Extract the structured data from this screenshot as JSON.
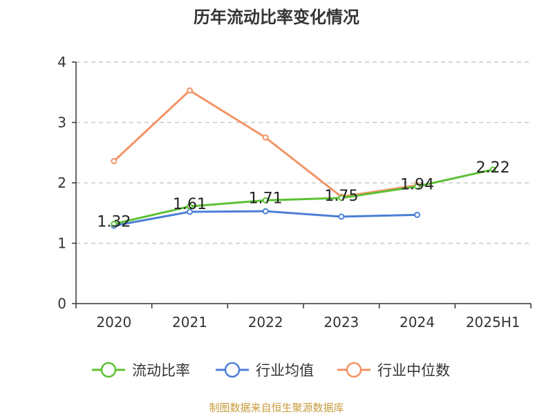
{
  "chart_data": {
    "type": "line",
    "title": "历年流动比率变化情况",
    "categories": [
      "2020",
      "2021",
      "2022",
      "2023",
      "2024",
      "2025H1"
    ],
    "ylim": [
      0,
      4
    ],
    "yticks": [
      "0",
      "1",
      "2",
      "3",
      "4"
    ],
    "grid": true,
    "legend_position": "bottom",
    "series": [
      {
        "name": "流动比率",
        "color": "#5cc133",
        "values": [
          1.32,
          1.61,
          1.71,
          1.75,
          1.94,
          2.22
        ],
        "labels": [
          "1.32",
          "1.61",
          "1.71",
          "1.75",
          "1.94",
          "2.22"
        ]
      },
      {
        "name": "行业均值",
        "color": "#4b7fd6",
        "values": [
          1.29,
          1.52,
          1.53,
          1.44,
          1.47,
          null
        ]
      },
      {
        "name": "行业中位数",
        "color": "#f49364",
        "values": [
          2.36,
          3.53,
          2.75,
          1.77,
          1.96,
          null
        ]
      }
    ]
  },
  "footer": {
    "source": "制图数据来自恒生聚源数据库"
  }
}
